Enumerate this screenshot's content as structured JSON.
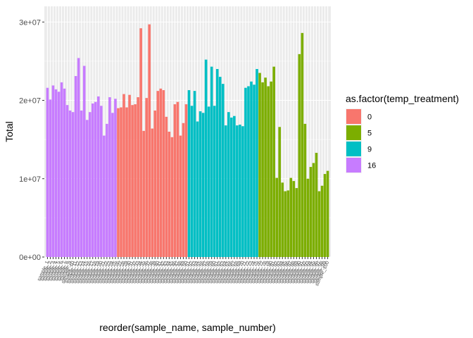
{
  "chart_data": {
    "type": "bar",
    "xlabel": "reorder(sample_name, sample_number)",
    "ylabel": "Total",
    "ylim": [
      0,
      32000000
    ],
    "yticks": [
      0,
      10000000,
      20000000,
      30000000
    ],
    "ytick_labels": [
      "0e+00",
      "1e+07",
      "2e+07",
      "3e+07"
    ],
    "legend": {
      "title": "as.factor(temp_treatment)",
      "position": "right",
      "entries": [
        {
          "label": "0",
          "color": "#F8766D"
        },
        {
          "label": "5",
          "color": "#7CAE00"
        },
        {
          "label": "9",
          "color": "#00BFC4"
        },
        {
          "label": "16",
          "color": "#C77CFF"
        }
      ]
    },
    "groups": [
      "16",
      "0",
      "9",
      "5"
    ],
    "group_colors": {
      "0": "#F8766D",
      "5": "#7CAE00",
      "9": "#00BFC4",
      "16": "#C77CFF"
    },
    "categories": [
      "sample_1",
      "sample_2",
      "sample_3",
      "sample_4",
      "sample_5",
      "sample_6",
      "sample_7",
      "sample_8",
      "sample_9",
      "sample_10",
      "sample_11",
      "sample_12",
      "sample_13",
      "sample_14",
      "sample_15",
      "sample_16",
      "sample_17",
      "sample_18",
      "sample_19",
      "sample_20",
      "sample_21",
      "sample_22",
      "sample_23",
      "sample_24",
      "sample_25",
      "sample_26",
      "sample_27",
      "sample_28",
      "sample_29",
      "sample_30",
      "sample_31",
      "sample_32",
      "sample_33",
      "sample_34",
      "sample_35",
      "sample_36",
      "sample_37",
      "sample_38",
      "sample_39",
      "sample_40",
      "sample_41",
      "sample_42",
      "sample_43",
      "sample_44",
      "sample_45",
      "sample_46",
      "sample_47",
      "sample_48",
      "sample_49",
      "sample_50",
      "sample_51",
      "sample_52",
      "sample_53",
      "sample_54",
      "sample_55",
      "sample_56",
      "sample_57",
      "sample_58",
      "sample_59",
      "sample_60",
      "sample_61",
      "sample_62",
      "sample_63",
      "sample_64",
      "sample_65",
      "sample_66",
      "sample_67",
      "sample_68",
      "sample_69",
      "sample_70",
      "sample_71",
      "sample_72",
      "sample_73",
      "sample_74",
      "sample_75",
      "sample_76",
      "sample_77",
      "sample_78",
      "sample_79",
      "sample_80",
      "sample_81",
      "sample_82",
      "sample_83",
      "sample_84",
      "sample_85",
      "sample_86",
      "sample_87",
      "sample_88",
      "sample_89",
      "sample_90",
      "sample_91",
      "sample_92",
      "sample_93",
      "sample_94",
      "sample_95",
      "sample_96",
      "sample_97",
      "sample_98",
      "sample_99",
      "sample_100"
    ],
    "treatments": [
      "16",
      "16",
      "16",
      "16",
      "16",
      "16",
      "16",
      "16",
      "16",
      "16",
      "16",
      "16",
      "16",
      "16",
      "16",
      "16",
      "16",
      "16",
      "16",
      "16",
      "16",
      "16",
      "16",
      "16",
      "16",
      "0",
      "0",
      "0",
      "0",
      "0",
      "0",
      "0",
      "0",
      "0",
      "0",
      "0",
      "0",
      "0",
      "0",
      "0",
      "0",
      "0",
      "0",
      "0",
      "0",
      "0",
      "0",
      "0",
      "0",
      "0",
      "9",
      "9",
      "9",
      "9",
      "9",
      "9",
      "9",
      "9",
      "9",
      "9",
      "9",
      "9",
      "9",
      "9",
      "9",
      "9",
      "9",
      "9",
      "9",
      "9",
      "9",
      "9",
      "9",
      "9",
      "9",
      "5",
      "5",
      "5",
      "5",
      "5",
      "5",
      "5",
      "5",
      "5",
      "5",
      "5",
      "5",
      "5",
      "5",
      "5",
      "5",
      "5",
      "5",
      "5",
      "5",
      "5",
      "5",
      "5",
      "5",
      "5"
    ],
    "values": [
      21600000,
      20100000,
      21900000,
      21400000,
      21100000,
      22300000,
      21500000,
      19400000,
      18700000,
      18500000,
      23100000,
      25400000,
      18700000,
      24400000,
      17500000,
      18500000,
      19600000,
      19800000,
      20500000,
      19300000,
      15500000,
      17000000,
      20400000,
      18400000,
      20200000,
      19000000,
      19100000,
      20800000,
      19100000,
      20700000,
      19400000,
      19500000,
      20400000,
      29200000,
      16100000,
      20300000,
      29700000,
      16400000,
      18700000,
      21200000,
      21500000,
      21300000,
      17900000,
      16000000,
      15300000,
      19500000,
      19800000,
      15500000,
      17100000,
      19500000,
      21300000,
      19300000,
      21200000,
      17300000,
      18600000,
      18400000,
      25200000,
      19200000,
      24300000,
      19300000,
      24000000,
      23000000,
      22100000,
      16800000,
      18500000,
      17800000,
      18000000,
      16800000,
      16900000,
      16700000,
      21600000,
      21800000,
      22400000,
      22000000,
      24000000,
      23500000,
      22300000,
      22900000,
      21800000,
      22400000,
      24300000,
      10100000,
      16600000,
      9500000,
      8400000,
      8500000,
      10100000,
      9700000,
      8800000,
      25900000,
      28600000,
      17000000,
      10000000,
      11500000,
      12000000,
      13300000,
      8400000,
      9100000,
      10600000,
      11000000
    ]
  }
}
